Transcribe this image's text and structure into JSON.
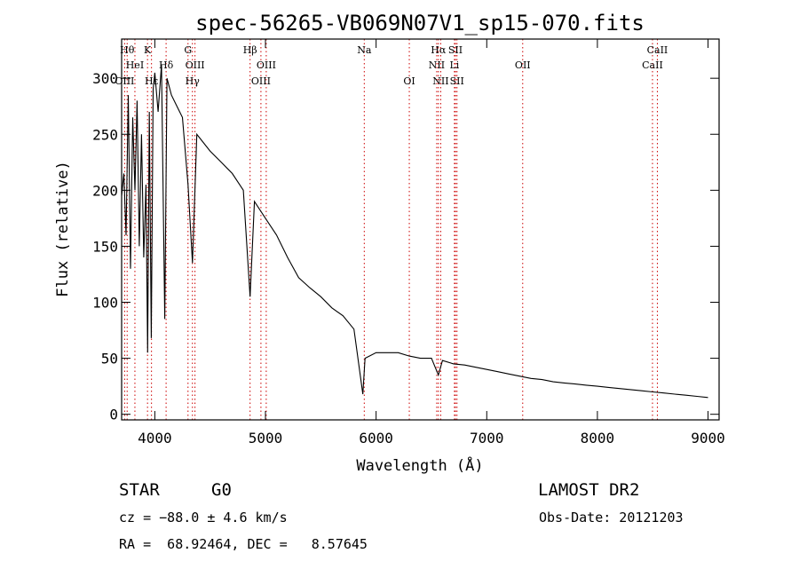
{
  "chart_data": {
    "type": "line",
    "title": "spec-56265-VB069N07V1_sp15-070.fits",
    "xlabel": "Wavelength (Å)",
    "ylabel": "Flux (relative)",
    "xlim": [
      3700,
      9100
    ],
    "ylim": [
      -5,
      335
    ],
    "xticks": [
      4000,
      5000,
      6000,
      7000,
      8000,
      9000
    ],
    "yticks": [
      0,
      50,
      100,
      150,
      200,
      250,
      300
    ],
    "grid": false,
    "series": [
      {
        "points": [
          [
            3700,
            195
          ],
          [
            3720,
            215
          ],
          [
            3740,
            160
          ],
          [
            3760,
            285
          ],
          [
            3780,
            130
          ],
          [
            3800,
            265
          ],
          [
            3820,
            200
          ],
          [
            3840,
            280
          ],
          [
            3860,
            150
          ],
          [
            3880,
            250
          ],
          [
            3900,
            140
          ],
          [
            3920,
            205
          ],
          [
            3935,
            55
          ],
          [
            3950,
            270
          ],
          [
            3968,
            68
          ],
          [
            3985,
            290
          ],
          [
            4000,
            305
          ],
          [
            4030,
            270
          ],
          [
            4060,
            312
          ],
          [
            4090,
            85
          ],
          [
            4110,
            300
          ],
          [
            4150,
            285
          ],
          [
            4200,
            275
          ],
          [
            4250,
            265
          ],
          [
            4300,
            205
          ],
          [
            4340,
            135
          ],
          [
            4380,
            250
          ],
          [
            4420,
            245
          ],
          [
            4500,
            235
          ],
          [
            4600,
            225
          ],
          [
            4700,
            215
          ],
          [
            4800,
            200
          ],
          [
            4861,
            105
          ],
          [
            4900,
            190
          ],
          [
            5000,
            175
          ],
          [
            5100,
            160
          ],
          [
            5200,
            140
          ],
          [
            5300,
            122
          ],
          [
            5400,
            113
          ],
          [
            5500,
            105
          ],
          [
            5600,
            95
          ],
          [
            5700,
            88
          ],
          [
            5800,
            76
          ],
          [
            5880,
            18
          ],
          [
            5900,
            50
          ],
          [
            6000,
            55
          ],
          [
            6100,
            55
          ],
          [
            6200,
            55
          ],
          [
            6300,
            52
          ],
          [
            6400,
            50
          ],
          [
            6500,
            50
          ],
          [
            6563,
            35
          ],
          [
            6600,
            48
          ],
          [
            6700,
            45
          ],
          [
            6800,
            44
          ],
          [
            6900,
            42
          ],
          [
            7000,
            40
          ],
          [
            7100,
            38
          ],
          [
            7200,
            36
          ],
          [
            7300,
            34
          ],
          [
            7400,
            32
          ],
          [
            7500,
            31
          ],
          [
            7600,
            29
          ],
          [
            7700,
            28
          ],
          [
            7800,
            27
          ],
          [
            7900,
            26
          ],
          [
            8000,
            25
          ],
          [
            8100,
            24
          ],
          [
            8200,
            23
          ],
          [
            8300,
            22
          ],
          [
            8400,
            21
          ],
          [
            8500,
            20
          ],
          [
            8600,
            19
          ],
          [
            8700,
            18
          ],
          [
            8800,
            17
          ],
          [
            8900,
            16
          ],
          [
            9000,
            15
          ]
        ]
      }
    ],
    "lines": [
      {
        "name": "Hθ",
        "wl": 3750,
        "row": 0
      },
      {
        "name": "K",
        "wl": 3934,
        "row": 0
      },
      {
        "name": "HeI",
        "wl": 3820,
        "row": 1
      },
      {
        "name": "Hδ",
        "wl": 4102,
        "row": 1
      },
      {
        "name": "OIII",
        "wl": 3727,
        "row": 2
      },
      {
        "name": "Hε",
        "wl": 3970,
        "row": 2
      },
      {
        "name": "G",
        "wl": 4300,
        "row": 0
      },
      {
        "name": "OIII",
        "wl": 4363,
        "row": 1
      },
      {
        "name": "Hγ",
        "wl": 4340,
        "row": 2
      },
      {
        "name": "Hβ",
        "wl": 4861,
        "row": 0
      },
      {
        "name": "OIII",
        "wl": 5007,
        "row": 1
      },
      {
        "name": "OIII",
        "wl": 4959,
        "row": 2
      },
      {
        "name": "Na",
        "wl": 5893,
        "row": 0
      },
      {
        "name": "OI",
        "wl": 6300,
        "row": 2
      },
      {
        "name": "Hα",
        "wl": 6563,
        "row": 0
      },
      {
        "name": "SII",
        "wl": 6717,
        "row": 0
      },
      {
        "name": "NII",
        "wl": 6548,
        "row": 1
      },
      {
        "name": "Li",
        "wl": 6708,
        "row": 1
      },
      {
        "name": "NII",
        "wl": 6584,
        "row": 2
      },
      {
        "name": "SII",
        "wl": 6731,
        "row": 2
      },
      {
        "name": "OII",
        "wl": 7325,
        "row": 1
      },
      {
        "name": "CaII",
        "wl": 8542,
        "row": 0
      },
      {
        "name": "CaII",
        "wl": 8498,
        "row": 1
      }
    ],
    "line_color": "#cc0000"
  },
  "info": {
    "object_class": "STAR",
    "subclass": "G0",
    "survey": "LAMOST DR2",
    "cz": "cz = −88.0 ± 4.6 km/s",
    "obs_date": "Obs-Date: 20121203",
    "coords": "RA =  68.92464, DEC =   8.57645"
  }
}
